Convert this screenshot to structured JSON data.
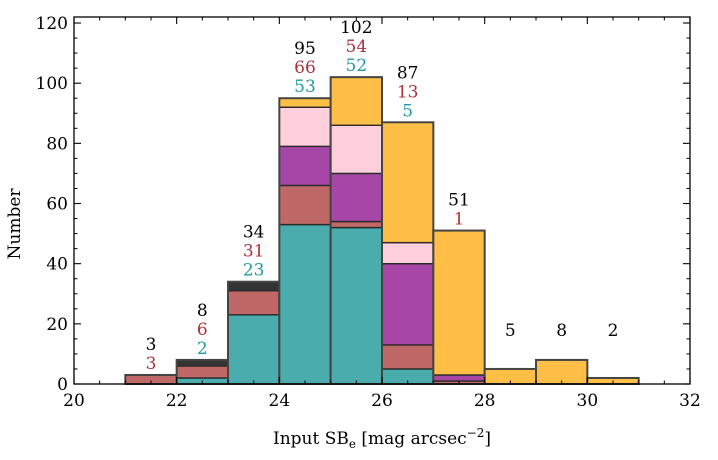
{
  "chart_data": {
    "type": "bar",
    "stacked": true,
    "xlabel_main": "Input SB",
    "xlabel_sub": "e",
    "xlabel_unit": "[mag arcsec",
    "xlabel_exp": "−2",
    "xlabel_close": "]",
    "ylabel": "Number",
    "xlim": [
      20,
      32
    ],
    "ylim": [
      0,
      122
    ],
    "xticks": [
      20,
      22,
      24,
      26,
      28,
      30,
      32
    ],
    "yticks": [
      0,
      20,
      40,
      60,
      80,
      100,
      120
    ],
    "bin_width": 1,
    "bins": [
      21,
      22,
      23,
      24,
      25,
      26,
      27,
      28,
      29,
      30
    ],
    "grid": false,
    "series": [
      {
        "color": "#4aacac",
        "values": [
          0,
          2,
          23,
          53,
          52,
          5,
          0,
          0,
          0,
          0
        ]
      },
      {
        "color": "#c06868",
        "values": [
          3,
          4,
          8,
          13,
          2,
          8,
          1,
          0,
          0,
          0
        ]
      },
      {
        "color": "#a646a6",
        "values": [
          0,
          0,
          0,
          13,
          16,
          27,
          2,
          0,
          0,
          0
        ]
      },
      {
        "color": "#ffd0dc",
        "values": [
          0,
          0,
          0,
          13,
          16,
          7,
          0,
          0,
          0,
          0
        ]
      },
      {
        "color": "#ffbf47",
        "values": [
          0,
          0,
          0,
          3,
          16,
          40,
          48,
          5,
          8,
          2
        ]
      },
      {
        "color": "#333333",
        "values": [
          0,
          2,
          3,
          0,
          0,
          0,
          0,
          0,
          0,
          0
        ]
      }
    ],
    "totals": [
      3,
      8,
      34,
      95,
      102,
      87,
      51,
      5,
      8,
      2
    ],
    "annotations": [
      {
        "bin": 21,
        "total": "3",
        "red": "3",
        "teal": ""
      },
      {
        "bin": 22,
        "total": "8",
        "red": "6",
        "teal": "2"
      },
      {
        "bin": 23,
        "total": "34",
        "red": "31",
        "teal": "23"
      },
      {
        "bin": 24,
        "total": "95",
        "red": "66",
        "teal": "53"
      },
      {
        "bin": 25,
        "total": "102",
        "red": "54",
        "teal": "52"
      },
      {
        "bin": 26,
        "total": "87",
        "red": "13",
        "teal": "5"
      },
      {
        "bin": 27,
        "total": "51",
        "red": "1",
        "teal": ""
      },
      {
        "bin": 28,
        "total": "5",
        "red": "",
        "teal": ""
      },
      {
        "bin": 29,
        "total": "8",
        "red": "",
        "teal": ""
      },
      {
        "bin": 30,
        "total": "2",
        "red": "",
        "teal": ""
      }
    ],
    "annotation_colors": {
      "total": "#000000",
      "red": "#b0303a",
      "teal": "#1f9aa0"
    },
    "edge_color": "#454545"
  }
}
